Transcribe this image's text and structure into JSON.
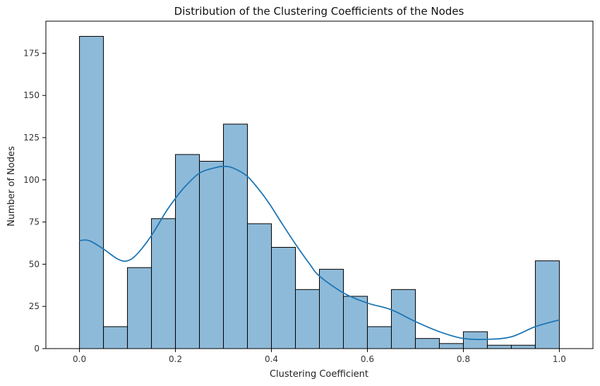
{
  "chart_data": {
    "type": "bar",
    "title": "Distribution of the Clustering Coefficients of the Nodes",
    "xlabel": "Clustering Coefficient",
    "ylabel": "Number of Nodes",
    "xlim": [
      -0.07,
      1.07
    ],
    "ylim": [
      0,
      194
    ],
    "xticks": [
      0.0,
      0.2,
      0.4,
      0.6,
      0.8,
      1.0
    ],
    "xtick_labels": [
      "0.0",
      "0.2",
      "0.4",
      "0.6",
      "0.8",
      "1.0"
    ],
    "yticks": [
      0,
      25,
      50,
      75,
      100,
      125,
      150,
      175
    ],
    "ytick_labels": [
      "0",
      "25",
      "50",
      "75",
      "100",
      "125",
      "150",
      "175"
    ],
    "bin_edges": [
      0.0,
      0.05,
      0.1,
      0.15,
      0.2,
      0.25,
      0.3,
      0.35,
      0.4,
      0.45,
      0.5,
      0.55,
      0.6,
      0.65,
      0.7,
      0.75,
      0.8,
      0.85,
      0.9,
      0.95,
      1.0
    ],
    "values": [
      185,
      13,
      48,
      77,
      115,
      111,
      133,
      74,
      60,
      35,
      47,
      31,
      13,
      35,
      6,
      3,
      10,
      2,
      2,
      52
    ],
    "kde": {
      "x": [
        0.0,
        0.02,
        0.05,
        0.08,
        0.1,
        0.12,
        0.15,
        0.18,
        0.2,
        0.22,
        0.25,
        0.28,
        0.3,
        0.32,
        0.35,
        0.38,
        0.4,
        0.42,
        0.45,
        0.48,
        0.5,
        0.55,
        0.6,
        0.65,
        0.7,
        0.75,
        0.8,
        0.85,
        0.9,
        0.95,
        1.0
      ],
      "y": [
        64,
        64,
        59,
        53,
        52,
        56,
        67,
        81,
        89,
        96,
        104,
        107,
        108,
        107,
        102,
        92,
        84,
        75,
        62,
        50,
        43,
        33,
        27,
        23,
        16,
        10,
        6,
        5.5,
        7,
        13,
        17
      ]
    },
    "bar_color": "#8ebad9",
    "bar_edge_color": "#000000",
    "kde_color": "#1f77b4",
    "grid": false,
    "legend": "none"
  }
}
